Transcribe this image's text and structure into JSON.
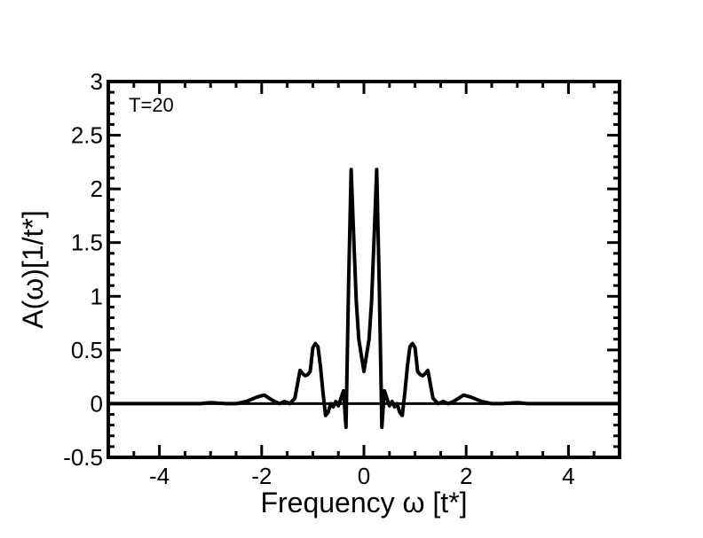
{
  "chart_data": {
    "type": "line",
    "title": "",
    "xlabel": "Frequency ω [t*]",
    "ylabel": "A(ω)[1/t*]",
    "xlim": [
      -5,
      5
    ],
    "ylim": [
      -0.5,
      3
    ],
    "xticks": [
      -4,
      -2,
      0,
      2,
      4
    ],
    "xtick_labels": [
      "-4",
      "-2",
      "0",
      "2",
      "4"
    ],
    "yticks": [
      -0.5,
      0,
      0.5,
      1,
      1.5,
      2,
      2.5,
      3
    ],
    "ytick_labels": [
      "-0.5",
      "0",
      "0.5",
      "1",
      "1.5",
      "2",
      "2.5",
      "3"
    ],
    "annotations": [
      {
        "text": "T=20",
        "x": -4.6,
        "y": 2.72
      }
    ],
    "grid": false,
    "legend": "none",
    "series": [
      {
        "color": "#000000",
        "x": [
          -5.0,
          -3.2,
          -3.0,
          -2.7,
          -2.5,
          -2.3,
          -2.1,
          -1.95,
          -1.85,
          -1.75,
          -1.65,
          -1.55,
          -1.45,
          -1.35,
          -1.25,
          -1.2,
          -1.15,
          -1.1,
          -1.05,
          -1.0,
          -0.95,
          -0.9,
          -0.85,
          -0.8,
          -0.75,
          -0.7,
          -0.65,
          -0.6,
          -0.55,
          -0.5,
          -0.45,
          -0.4,
          -0.35,
          -0.3,
          -0.25,
          -0.2,
          -0.15,
          -0.1,
          -0.05,
          0.0,
          0.05,
          0.1,
          0.15,
          0.2,
          0.25,
          0.3,
          0.35,
          0.4,
          0.45,
          0.5,
          0.55,
          0.6,
          0.65,
          0.7,
          0.75,
          0.8,
          0.85,
          0.9,
          0.95,
          1.0,
          1.05,
          1.1,
          1.15,
          1.2,
          1.25,
          1.35,
          1.45,
          1.55,
          1.65,
          1.75,
          1.85,
          1.95,
          2.1,
          2.3,
          2.5,
          2.7,
          3.0,
          3.2,
          5.0
        ],
        "y": [
          0.0,
          0.0,
          0.01,
          0.0,
          0.0,
          0.02,
          0.06,
          0.08,
          0.05,
          0.02,
          0.0,
          0.02,
          0.0,
          0.05,
          0.31,
          0.28,
          0.26,
          0.27,
          0.3,
          0.52,
          0.56,
          0.53,
          0.35,
          0.1,
          -0.11,
          -0.08,
          0.0,
          -0.03,
          0.02,
          -0.02,
          0.05,
          0.12,
          -0.22,
          1.1,
          2.18,
          1.55,
          0.95,
          0.6,
          0.45,
          0.3,
          0.45,
          0.6,
          0.95,
          1.55,
          2.18,
          1.1,
          -0.22,
          0.12,
          0.05,
          -0.02,
          0.02,
          -0.03,
          0.0,
          -0.08,
          -0.11,
          0.1,
          0.35,
          0.53,
          0.56,
          0.52,
          0.3,
          0.27,
          0.26,
          0.28,
          0.31,
          0.05,
          0.0,
          0.02,
          0.0,
          0.02,
          0.05,
          0.08,
          0.06,
          0.02,
          0.0,
          0.0,
          0.01,
          0.0,
          0.0
        ]
      }
    ]
  }
}
